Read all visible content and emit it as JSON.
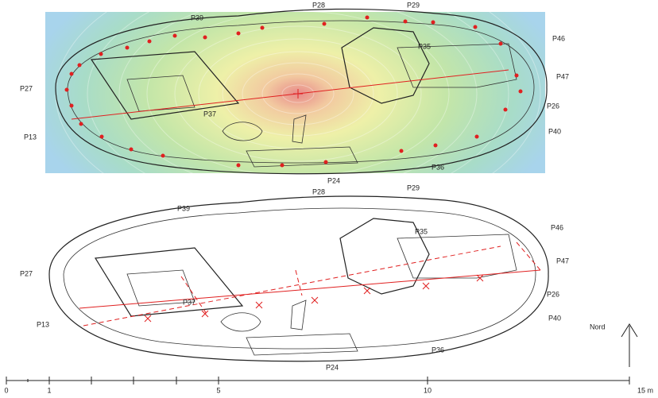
{
  "top_plan": {
    "labels": [
      "P28",
      "P29",
      "P39",
      "P46",
      "P35",
      "P47",
      "P27",
      "P37",
      "P26",
      "P40",
      "P13",
      "P36",
      "P24"
    ]
  },
  "bottom_plan": {
    "labels": [
      "P28",
      "P29",
      "P39",
      "P46",
      "P35",
      "P47",
      "P27",
      "P37",
      "P26",
      "P40",
      "P13",
      "P36",
      "P24"
    ]
  },
  "scale_bar": {
    "labels": [
      "0",
      "1",
      "5",
      "10",
      "15 m"
    ]
  },
  "north": {
    "label": "Nord"
  }
}
